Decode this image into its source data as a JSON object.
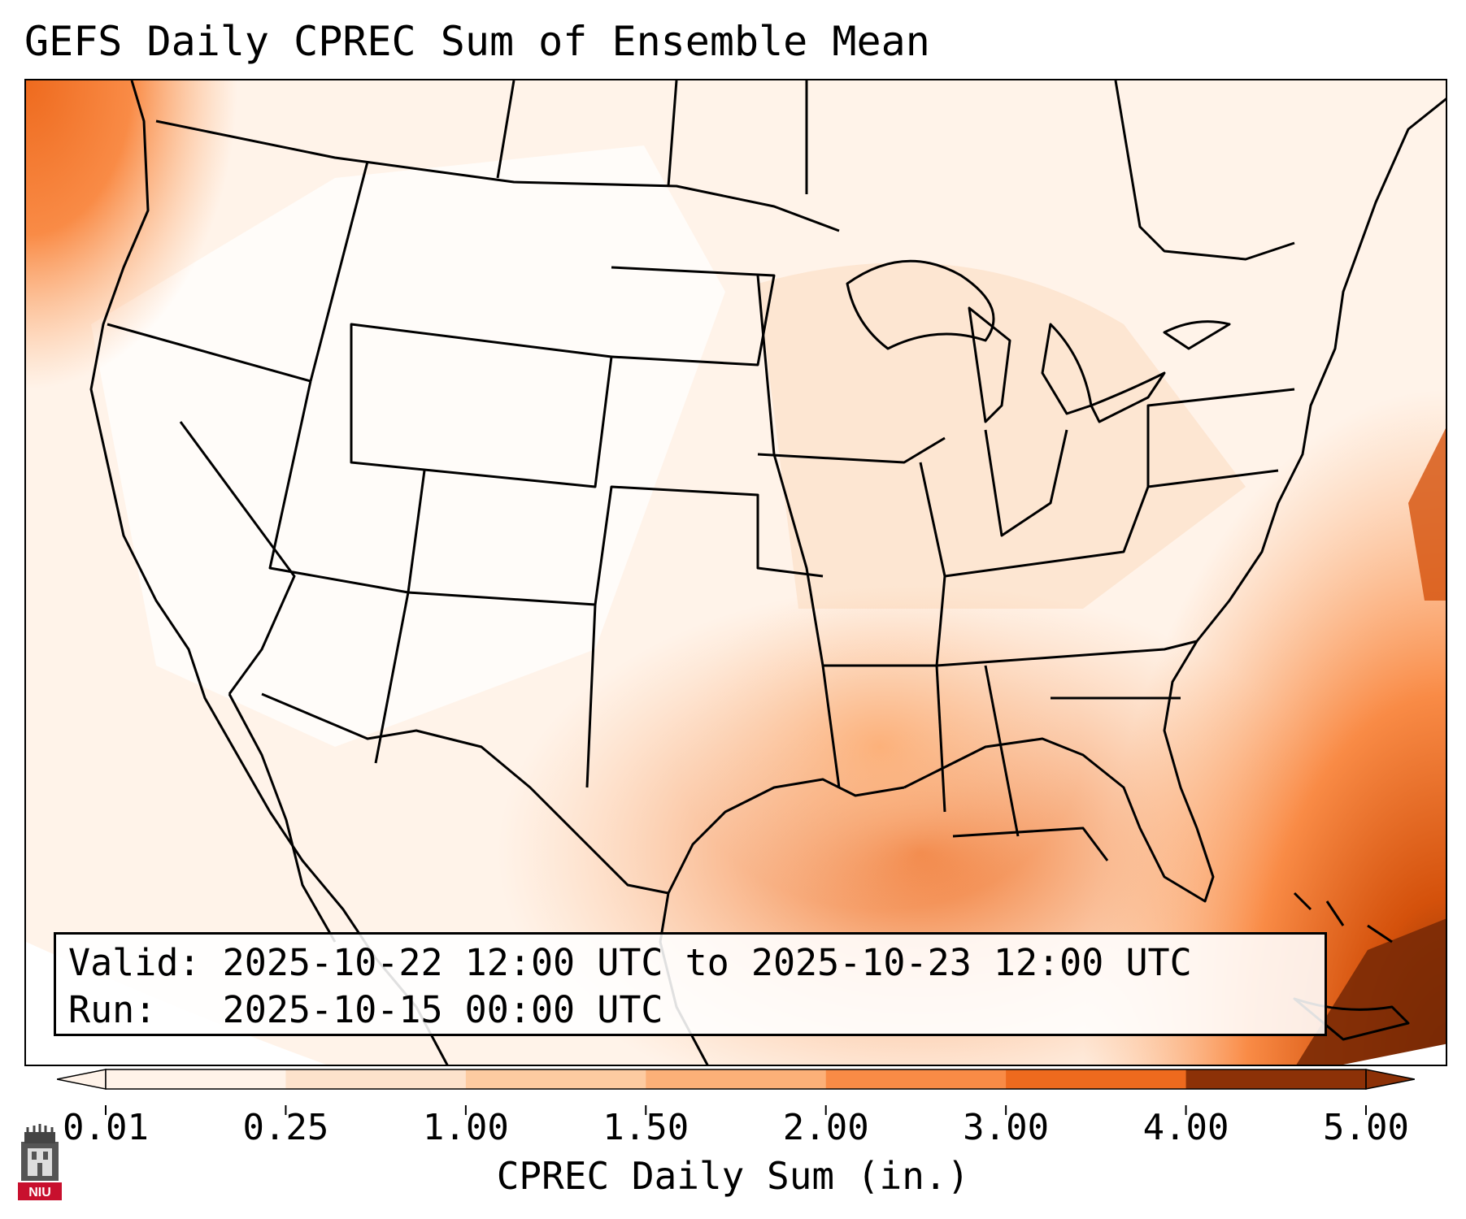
{
  "title": "GEFS Daily CPREC Sum of Ensemble Mean",
  "info": {
    "valid_label": "Valid:",
    "valid_value": "2025-10-22 12:00 UTC to 2025-10-23 12:00 UTC",
    "run_label": "Run:",
    "run_value": "2025-10-15 00:00 UTC"
  },
  "colorbar": {
    "label": "CPREC Daily Sum (in.)",
    "ticks": [
      "0.01",
      "0.25",
      "1.00",
      "1.50",
      "2.00",
      "3.00",
      "4.00",
      "5.00"
    ],
    "colors": [
      "#fff3e9",
      "#fde2cc",
      "#fdcba1",
      "#fcb078",
      "#f98b46",
      "#ee6a1e",
      "#d4510b",
      "#8c3107"
    ],
    "extend": "both"
  },
  "logo": {
    "text": "NIU"
  },
  "icons": {
    "logo": "niu-tower-logo-icon"
  }
}
